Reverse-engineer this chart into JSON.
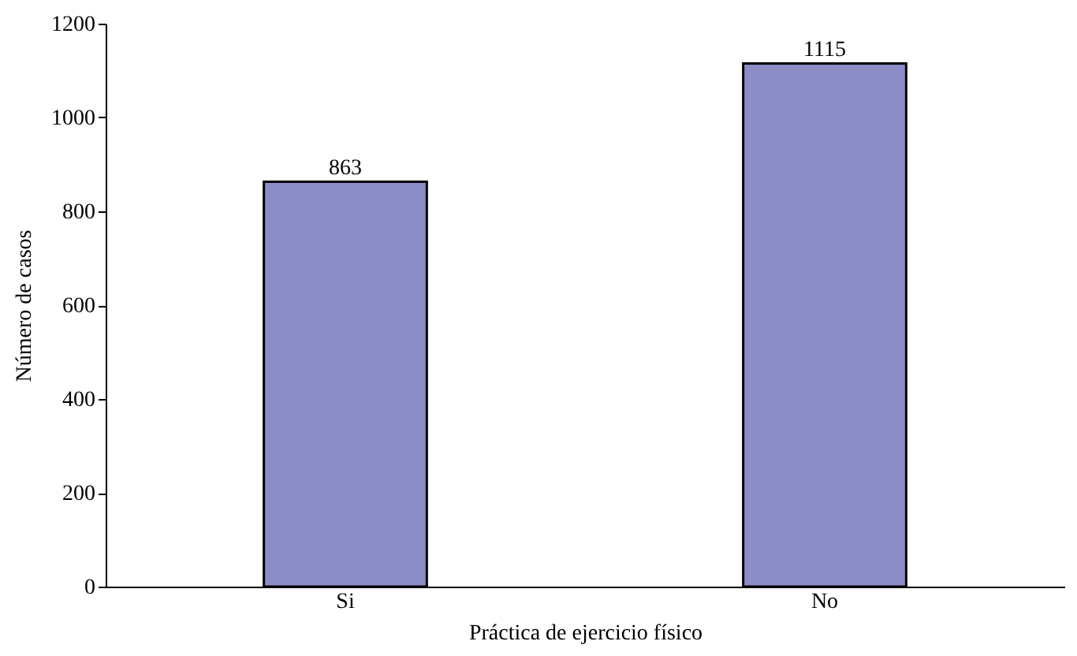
{
  "chart_data": {
    "type": "bar",
    "xlabel": "Práctica de ejercicio físico",
    "ylabel": "Número de casos",
    "categories": [
      "Si",
      "No"
    ],
    "values": [
      863,
      1115
    ],
    "color": "#8c8cc6",
    "ylim": [
      0,
      1200
    ],
    "yticks": [
      0,
      200,
      400,
      600,
      800,
      1000,
      1200
    ],
    "grid": false,
    "data_labels": true
  }
}
